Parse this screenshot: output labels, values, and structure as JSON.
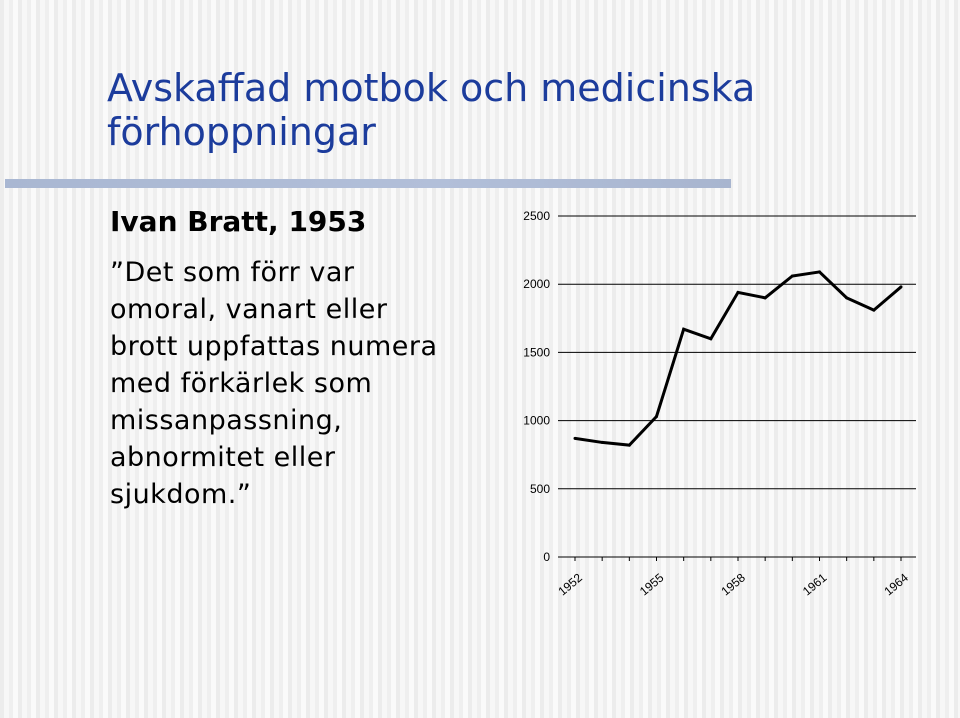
{
  "slide": {
    "title_lines": [
      "Avskaffad motbok och medicinska",
      "förhoppningar"
    ],
    "subheading": "Ivan Bratt, 1953",
    "quote_lines": [
      "”Det som förr var",
      "omoral, vanart eller",
      "brott uppfattas numera",
      "med förkärlek som",
      "missanpassning,",
      "abnormitet eller",
      "sjukdom.”"
    ],
    "colors": {
      "title": "#1c3c9c",
      "rule": "#adbbd5",
      "line": "#000000"
    }
  },
  "chart_data": {
    "type": "line",
    "title": "",
    "xlabel": "",
    "ylabel": "",
    "ylim": [
      0,
      2500
    ],
    "yticks": [
      0,
      500,
      1000,
      1500,
      2000,
      2500
    ],
    "xtick_labels": [
      "1952",
      "1955",
      "1958",
      "1961",
      "1964"
    ],
    "grid": false,
    "series": [
      {
        "x": [
          1952,
          1953,
          1954,
          1955,
          1956,
          1957,
          1958,
          1959,
          1960,
          1961,
          1962,
          1963,
          1964
        ],
        "values": [
          870,
          840,
          820,
          1030,
          1670,
          1600,
          1940,
          1900,
          2060,
          2090,
          1900,
          1810,
          1980
        ]
      }
    ]
  }
}
